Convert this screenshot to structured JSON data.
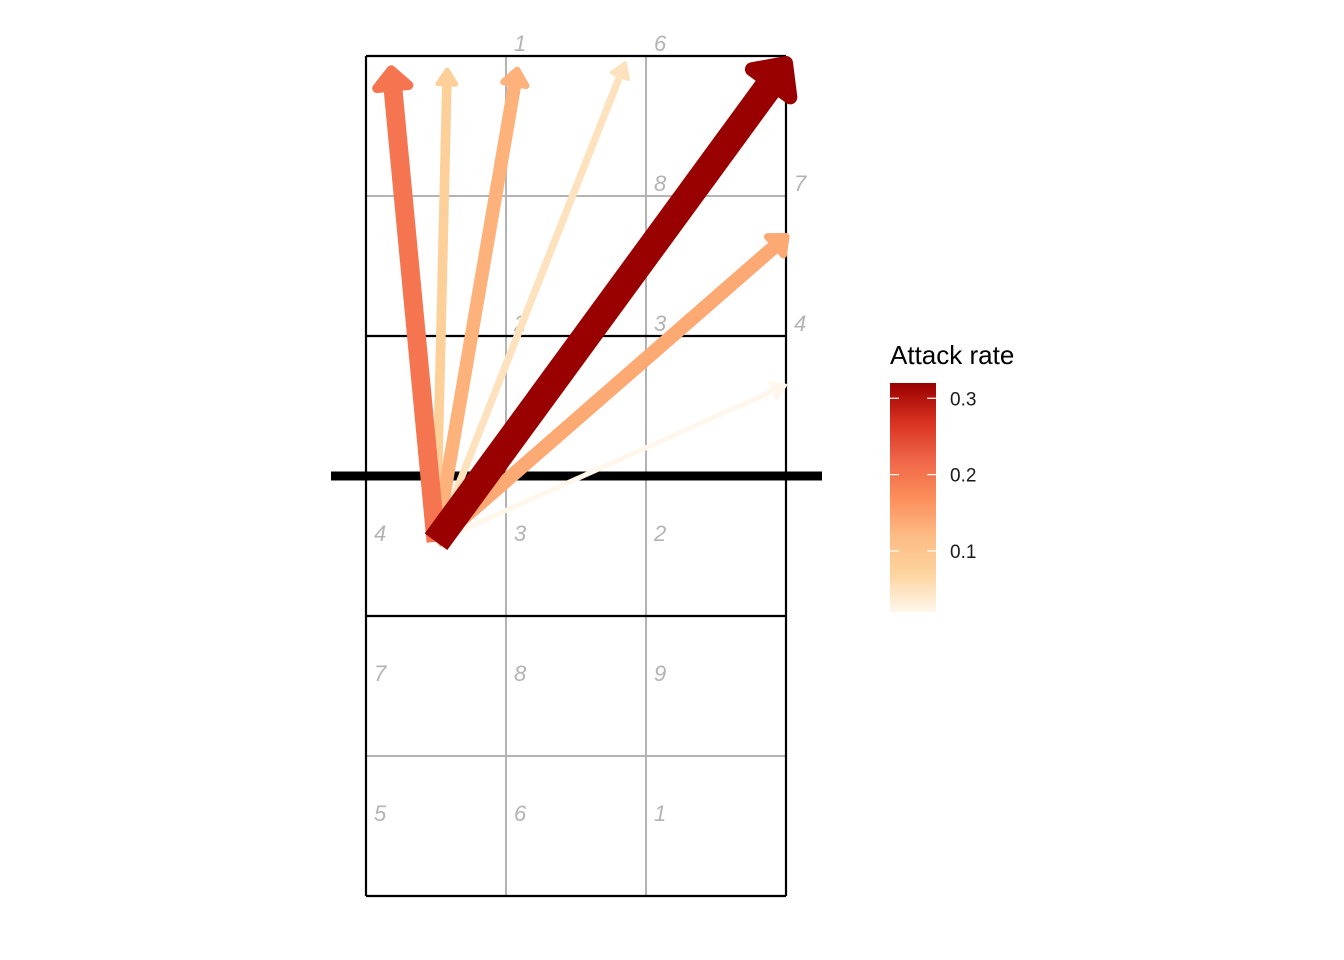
{
  "chart_data": {
    "type": "court-attack-map",
    "legend": {
      "title": "Attack rate",
      "ticks": [
        0.1,
        0.2,
        0.3
      ],
      "range": [
        0.02,
        0.32
      ],
      "colors": [
        "#fff7ec",
        "#fdd49e",
        "#fdbb84",
        "#fc8d59",
        "#ef6548",
        "#d7301f",
        "#990000"
      ],
      "placement": "right"
    },
    "court": {
      "x_range": [
        0.5,
        3.5
      ],
      "y_range": [
        0.5,
        6.5
      ],
      "net_y": 3.5,
      "attack_lines_y": [
        2.5,
        4.5
      ],
      "zone_lines_x": [
        1.5,
        2.5
      ],
      "zone_lines_y": [
        1.5,
        5.5
      ],
      "net_line_color": "#000000",
      "zone_line_color": "#b3b3b3"
    },
    "zone_labels": [
      {
        "text": "4",
        "x": 0.5,
        "y": 3.0
      },
      {
        "text": "3",
        "x": 1.5,
        "y": 3.0
      },
      {
        "text": "2",
        "x": 2.5,
        "y": 3.0
      },
      {
        "text": "7",
        "x": 0.5,
        "y": 2.0
      },
      {
        "text": "8",
        "x": 1.5,
        "y": 2.0
      },
      {
        "text": "9",
        "x": 2.5,
        "y": 2.0
      },
      {
        "text": "5",
        "x": 0.5,
        "y": 1.0
      },
      {
        "text": "6",
        "x": 1.5,
        "y": 1.0
      },
      {
        "text": "1",
        "x": 2.5,
        "y": 1.0
      },
      {
        "text": "2",
        "x": 1.5,
        "y": 4.5
      },
      {
        "text": "3",
        "x": 2.5,
        "y": 4.5
      },
      {
        "text": "4",
        "x": 3.5,
        "y": 4.5
      },
      {
        "text": "8",
        "x": 2.5,
        "y": 5.5
      },
      {
        "text": "7",
        "x": 3.5,
        "y": 5.5
      },
      {
        "text": "1",
        "x": 1.5,
        "y": 6.5
      },
      {
        "text": "6",
        "x": 2.5,
        "y": 6.5
      }
    ],
    "origin": {
      "x": 1.0,
      "y": 3.03
    },
    "arrows": [
      {
        "end_x": 0.68,
        "end_y": 6.4,
        "rate": 0.2
      },
      {
        "end_x": 1.08,
        "end_y": 6.4,
        "rate": 0.08
      },
      {
        "end_x": 1.58,
        "end_y": 6.4,
        "rate": 0.13
      },
      {
        "end_x": 2.35,
        "end_y": 6.45,
        "rate": 0.05
      },
      {
        "end_x": 3.5,
        "end_y": 6.45,
        "rate": 0.32
      },
      {
        "end_x": 3.5,
        "end_y": 5.21,
        "rate": 0.14
      },
      {
        "end_x": 3.5,
        "end_y": 4.15,
        "rate": 0.02
      }
    ]
  }
}
